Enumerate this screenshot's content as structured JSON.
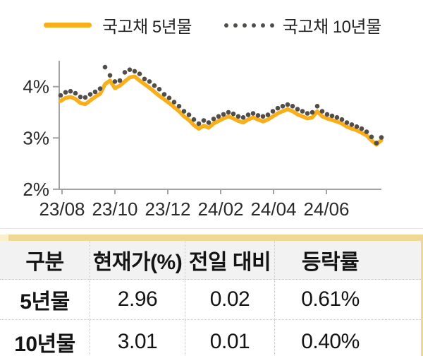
{
  "chart_data": {
    "type": "line",
    "title": "",
    "xlabel": "",
    "ylabel": "",
    "x_start": "23/08",
    "x_end": "24/08",
    "x_tick_labels": [
      "23/08",
      "23/10",
      "23/12",
      "24/02",
      "24/04",
      "24/06"
    ],
    "y_ticks": [
      {
        "value": 4,
        "label": "4%"
      },
      {
        "value": 3,
        "label": "3%"
      },
      {
        "value": 2,
        "label": "2%"
      }
    ],
    "ylim": [
      2,
      4.5
    ],
    "grid": false,
    "legend_position": "top",
    "axis_color": "#A3A3A3",
    "tick_label_color": "#2B2B2B",
    "series": [
      {
        "name": "국고채 5년물",
        "style": "line",
        "color": "#F9AE1B",
        "values": [
          3.72,
          3.78,
          3.8,
          3.76,
          3.68,
          3.66,
          3.73,
          3.8,
          3.86,
          4.05,
          4.12,
          3.97,
          4.02,
          4.1,
          4.18,
          4.2,
          4.12,
          4.05,
          3.98,
          3.9,
          3.82,
          3.75,
          3.68,
          3.6,
          3.52,
          3.42,
          3.35,
          3.25,
          3.18,
          3.24,
          3.2,
          3.28,
          3.33,
          3.38,
          3.42,
          3.38,
          3.33,
          3.3,
          3.36,
          3.4,
          3.36,
          3.32,
          3.36,
          3.42,
          3.48,
          3.52,
          3.56,
          3.52,
          3.46,
          3.42,
          3.38,
          3.4,
          3.52,
          3.42,
          3.38,
          3.35,
          3.32,
          3.28,
          3.22,
          3.18,
          3.15,
          3.1,
          3.05,
          2.95,
          2.87,
          2.96
        ]
      },
      {
        "name": "국고채 10년물",
        "style": "dots",
        "color": "#514D48",
        "values": [
          3.83,
          3.89,
          3.91,
          3.87,
          3.8,
          3.79,
          3.85,
          3.9,
          3.96,
          4.38,
          4.22,
          4.1,
          4.12,
          4.28,
          4.33,
          4.3,
          4.25,
          4.15,
          4.1,
          4.02,
          3.95,
          3.85,
          3.78,
          3.7,
          3.62,
          3.52,
          3.45,
          3.36,
          3.28,
          3.34,
          3.3,
          3.37,
          3.42,
          3.46,
          3.5,
          3.47,
          3.42,
          3.4,
          3.45,
          3.48,
          3.44,
          3.42,
          3.45,
          3.52,
          3.58,
          3.62,
          3.65,
          3.62,
          3.56,
          3.52,
          3.48,
          3.5,
          3.62,
          3.52,
          3.46,
          3.43,
          3.4,
          3.36,
          3.3,
          3.26,
          3.22,
          3.18,
          3.12,
          3.02,
          2.9,
          3.01
        ]
      }
    ]
  },
  "table": {
    "headers": [
      "구분",
      "현재가(%)",
      "전일 대비",
      "등락률"
    ],
    "rows": [
      {
        "label": "5년물",
        "values": [
          "2.96",
          "0.02",
          "0.61%"
        ]
      },
      {
        "label": "10년물",
        "values": [
          "3.01",
          "0.01",
          "0.40%"
        ]
      }
    ],
    "accent_color": "#EFD795",
    "header_bg": "#F2F2F2"
  }
}
